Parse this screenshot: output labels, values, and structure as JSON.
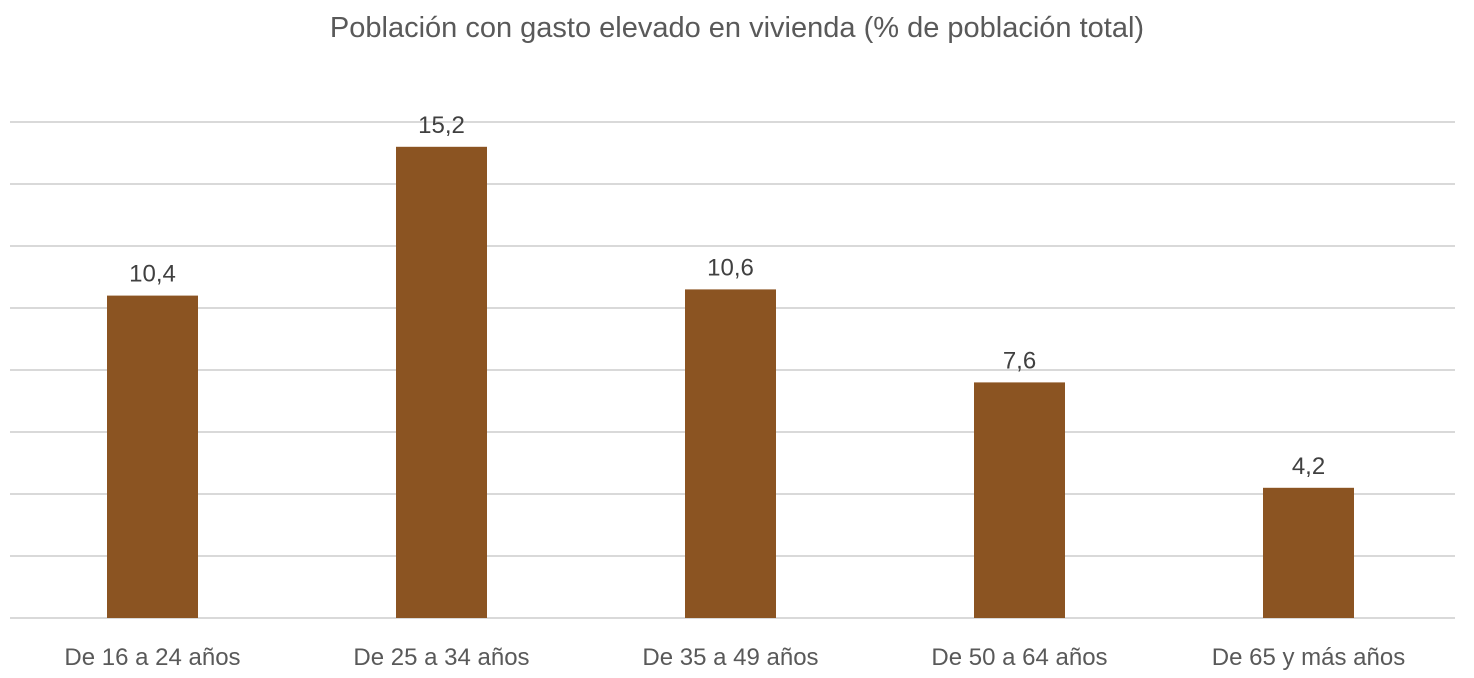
{
  "chart_data": {
    "type": "bar",
    "title": "Población con gasto elevado en vivienda (% de población total)",
    "categories": [
      "De 16 a 24 años",
      "De 25 a 34 años",
      "De 35 a 49 años",
      "De 50 a 64 años",
      "De 65 y más años"
    ],
    "values": [
      10.4,
      15.2,
      10.6,
      7.6,
      4.2
    ],
    "data_labels": [
      "10,4",
      "15,2",
      "10,6",
      "7,6",
      "4,2"
    ],
    "xlabel": "",
    "ylabel": "",
    "ylim": [
      0,
      16
    ],
    "y_gridline_step": 2,
    "y_tick_labels_shown": false,
    "grid": true,
    "legend": "none",
    "colors": {
      "bar": "#8B5422",
      "grid": "#D9D9D9",
      "text": "#595959",
      "label": "#404040"
    }
  }
}
